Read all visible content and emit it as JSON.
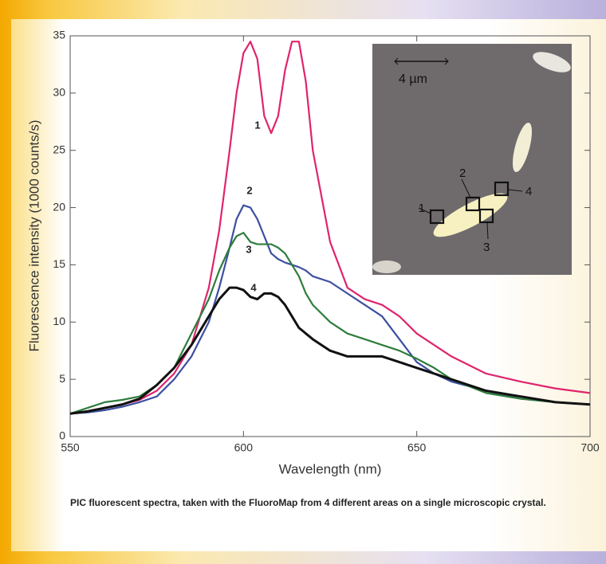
{
  "chart_data": {
    "type": "line",
    "x_label": "Wavelength (nm)",
    "y_label": "Fluorescence intensity (1000 counts/s)",
    "caption": "PIC fluorescent spectra, taken with the FluoroMap from 4 different areas on a  single microscopic crystal.",
    "x": [
      550,
      555,
      560,
      565,
      570,
      575,
      580,
      585,
      590,
      593,
      596,
      598,
      600,
      602,
      604,
      606,
      608,
      610,
      612,
      614,
      616,
      618,
      620,
      625,
      630,
      635,
      640,
      645,
      650,
      655,
      660,
      670,
      680,
      690,
      700
    ],
    "series": [
      {
        "name": "1",
        "color": "#e0246c",
        "values": [
          2,
          2.2,
          2.5,
          2.8,
          3.2,
          4,
          5.5,
          8,
          13,
          18,
          25,
          30,
          33.5,
          34.5,
          33,
          28,
          26.5,
          28,
          32,
          34.5,
          34.5,
          31,
          25,
          17,
          13,
          12,
          11.5,
          10.5,
          9,
          8,
          7,
          5.5,
          4.8,
          4.2,
          3.8
        ]
      },
      {
        "name": "2",
        "color": "#3c4fa0",
        "values": [
          2,
          2.1,
          2.3,
          2.6,
          3,
          3.5,
          5,
          7,
          10,
          13,
          16.5,
          19,
          20.2,
          20,
          19,
          17.5,
          16,
          15.5,
          15.2,
          15,
          14.8,
          14.5,
          14,
          13.5,
          12.5,
          11.5,
          10.5,
          8.5,
          6.5,
          5.5,
          4.8,
          4,
          3.3,
          3,
          2.8
        ]
      },
      {
        "name": "3",
        "color": "#2e7d3c",
        "values": [
          2,
          2.5,
          3,
          3.2,
          3.5,
          4.5,
          6,
          9,
          12,
          14.5,
          16.5,
          17.5,
          17.8,
          17,
          16.8,
          16.8,
          16.8,
          16.5,
          16,
          15,
          14,
          12.5,
          11.5,
          10,
          9,
          8.5,
          8,
          7.5,
          6.8,
          6,
          5,
          3.8,
          3.3,
          3,
          2.8
        ]
      },
      {
        "name": "4",
        "color": "#111111",
        "values": [
          2,
          2.2,
          2.5,
          2.8,
          3.3,
          4.5,
          6,
          8,
          10.5,
          12,
          13,
          13,
          12.8,
          12.2,
          12,
          12.5,
          12.5,
          12.2,
          11.5,
          10.5,
          9.5,
          9,
          8.5,
          7.5,
          7,
          7,
          7,
          6.5,
          6,
          5.5,
          5,
          4,
          3.5,
          3,
          2.8
        ]
      }
    ],
    "xlim": [
      550,
      700
    ],
    "ylim": [
      0,
      35
    ],
    "xticks": [
      550,
      600,
      650,
      700
    ],
    "yticks": [
      0,
      5,
      10,
      15,
      20,
      25,
      30,
      35
    ],
    "inset": {
      "scale": "4 µm",
      "labels": [
        "1",
        "2",
        "3",
        "4"
      ]
    }
  }
}
